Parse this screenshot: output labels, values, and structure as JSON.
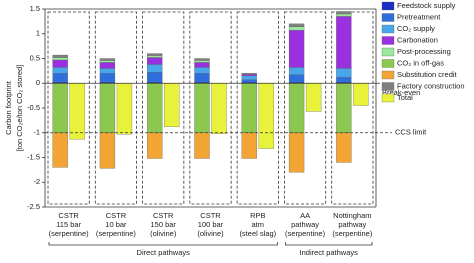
{
  "chart_data": {
    "type": "stacked_bar_total",
    "y_label": [
      "Carbon footprint",
      "[ton CO₂e/ton CO₂ stored]"
    ],
    "categories": [
      [
        "CSTR",
        "115 bar",
        "(serpentine)"
      ],
      [
        "CSTR",
        "10 bar",
        "(serpentine)"
      ],
      [
        "CSTR",
        "150 bar",
        "(olivine)"
      ],
      [
        "CSTR",
        "100 bar",
        "(olivine)"
      ],
      [
        "RPB",
        "atm",
        "(steel slag)"
      ],
      [
        "AA",
        "pathway",
        "(serpentine)"
      ],
      [
        "Nottingham",
        "pathway",
        "(serpentine)"
      ]
    ],
    "groups": [
      {
        "label": "Direct pathways",
        "from": 0,
        "to": 4
      },
      {
        "label": "Indirect pathways",
        "from": 5,
        "to": 6
      }
    ],
    "series": [
      {
        "name": "Feedstock supply",
        "color": "#1a2fc4",
        "values": [
          0.02,
          0.02,
          0.02,
          0.02,
          0.02,
          0.02,
          0.02
        ]
      },
      {
        "name": "Pretreatment",
        "color": "#2f6fdc",
        "values": [
          0.18,
          0.18,
          0.2,
          0.18,
          0.05,
          0.15,
          0.1
        ]
      },
      {
        "name": "CO₂ supply",
        "color": "#4aa6ea",
        "values": [
          0.12,
          0.1,
          0.16,
          0.12,
          0.08,
          0.15,
          0.18
        ]
      },
      {
        "name": "Carbonation",
        "color": "#9b30e0",
        "values": [
          0.15,
          0.12,
          0.14,
          0.1,
          0.03,
          0.75,
          1.05
        ]
      },
      {
        "name": "Post-processing",
        "color": "#9be89b",
        "values": [
          0.05,
          0.04,
          0.04,
          0.04,
          0.01,
          0.07,
          0.05
        ]
      },
      {
        "name": "CO₂ in off-gas",
        "color": "#8cc850",
        "values": [
          -1,
          -1,
          -1,
          -1,
          -1,
          -1,
          -1
        ]
      },
      {
        "name": "Substitution credit",
        "color": "#f2a535",
        "values": [
          -0.7,
          -0.72,
          -0.52,
          -0.52,
          -0.52,
          -0.8,
          -0.6
        ]
      },
      {
        "name": "Factory construction",
        "color": "#808080",
        "values": [
          0.05,
          0.04,
          0.04,
          0.04,
          0.01,
          0.06,
          0.05
        ]
      }
    ],
    "total": {
      "name": "Total",
      "color": "#e8f23a",
      "values": [
        -1.13,
        -1.03,
        -0.88,
        -1.02,
        -1.32,
        -0.57,
        -0.45
      ]
    },
    "reference_lines": [
      {
        "value": 0,
        "label": "Break-even"
      },
      {
        "value": -1,
        "label": "CCS limit"
      }
    ],
    "ylim": [
      -2.5,
      1.5
    ],
    "yticks": [
      -2.5,
      -2,
      -1.5,
      -1,
      -0.5,
      0,
      0.5,
      1,
      1.5
    ]
  }
}
